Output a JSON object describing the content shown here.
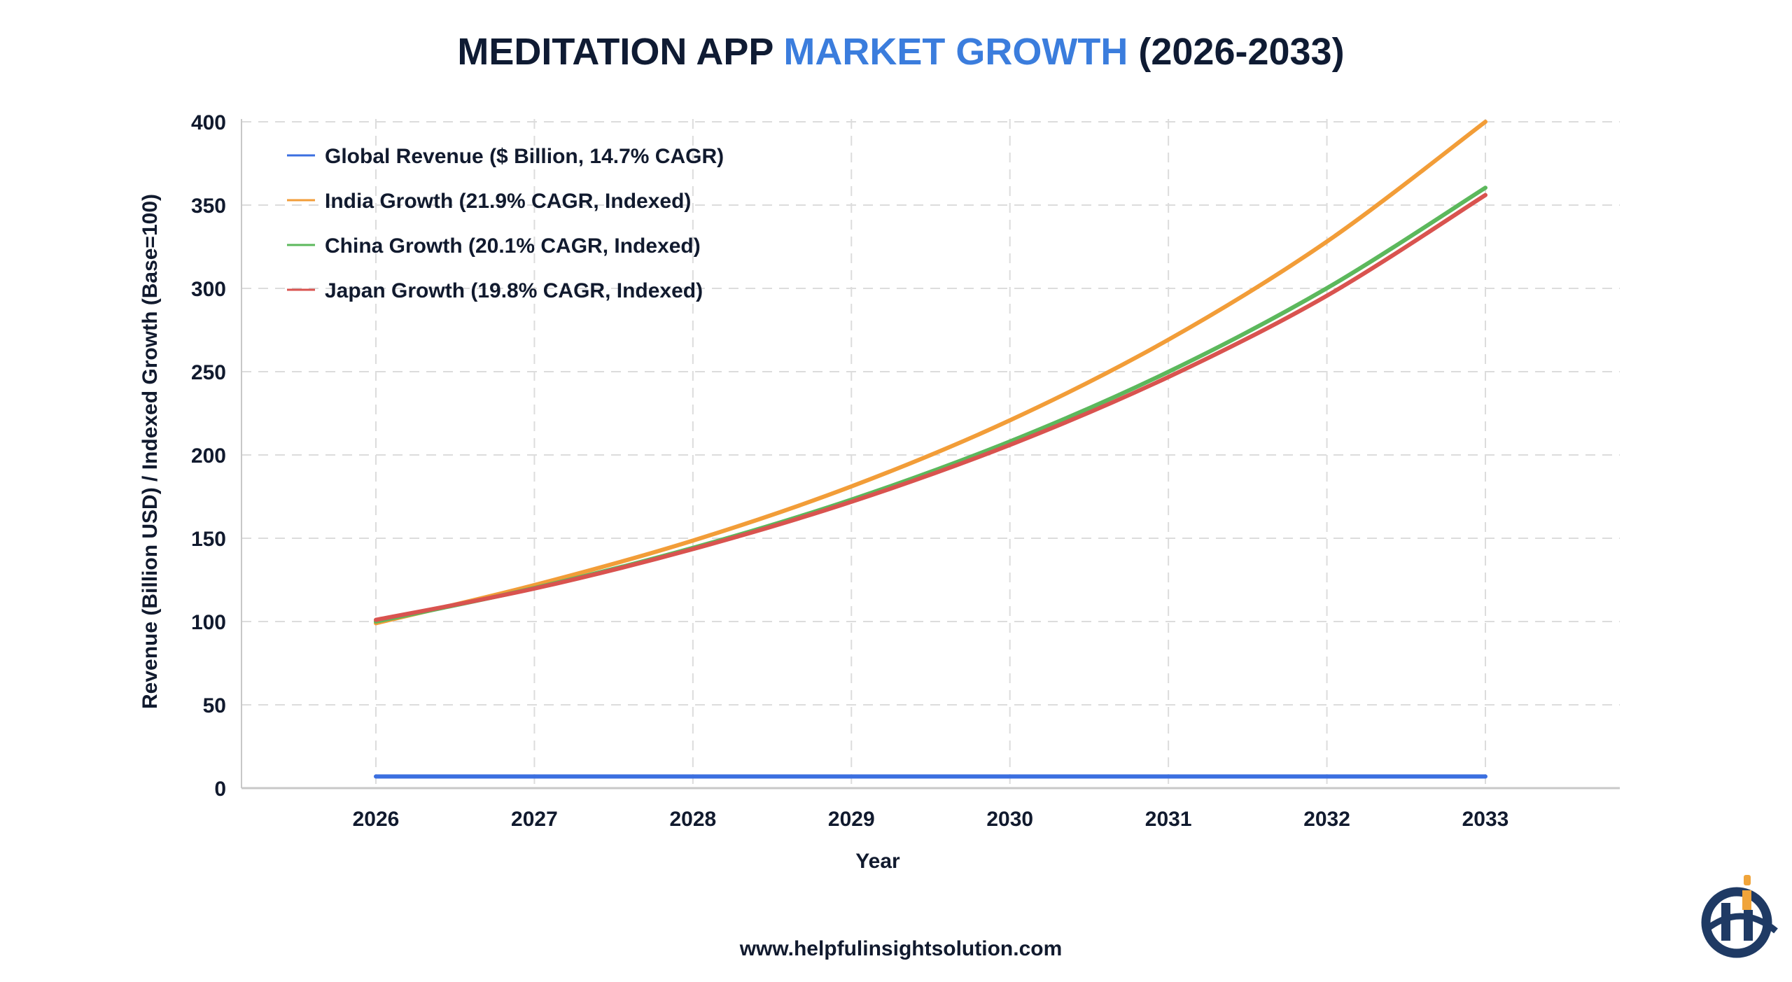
{
  "chart_data": {
    "type": "line",
    "title": {
      "part1": "MEDITATION APP ",
      "part2": "MARKET GROWTH",
      "part3": " (2026-2033)"
    },
    "xlabel": "Year",
    "ylabel": "Revenue (Billion USD) / Indexed Growth (Base=100)",
    "x": [
      2026,
      2027,
      2028,
      2029,
      2030,
      2031,
      2032,
      2033
    ],
    "x_tick_labels": [
      "2026",
      "2027",
      "2028",
      "2029",
      "2030",
      "2031",
      "2032",
      "2033"
    ],
    "y_ticks": [
      0,
      50,
      100,
      150,
      200,
      250,
      300,
      350,
      400
    ],
    "y_tick_labels": [
      "0",
      "50",
      "100",
      "150",
      "200",
      "250",
      "300",
      "350",
      "400"
    ],
    "ylim": [
      0,
      400
    ],
    "grid": true,
    "legend_position": "top-left",
    "series": [
      {
        "name": "Global Revenue ($ Billion, 14.7% CAGR)",
        "color": "#3b6fe0",
        "values": [
          7,
          7,
          7,
          7,
          7,
          7,
          7,
          7
        ]
      },
      {
        "name": "India Growth (21.9% CAGR, Indexed)",
        "color": "#f29d38",
        "values": [
          99,
          121.9,
          148.6,
          181.1,
          220.8,
          269.2,
          328.1,
          400
        ]
      },
      {
        "name": "China Growth (20.1% CAGR, Indexed)",
        "color": "#5cb85c",
        "values": [
          100,
          120.1,
          144.2,
          173.2,
          208.1,
          249.9,
          300.1,
          360.4
        ]
      },
      {
        "name": "Japan Growth (19.8% CAGR, Indexed)",
        "color": "#d9534f",
        "values": [
          101,
          119.8,
          143.5,
          171.9,
          206.0,
          246.8,
          295.6,
          356
        ]
      }
    ]
  },
  "colors": {
    "title_dark": "#0f1b33",
    "title_accent": "#3b7ddd",
    "logo_navy": "#1f3a64",
    "logo_orange": "#f0a43a"
  },
  "footer": {
    "website": "www.helpfulinsightsolution.com"
  },
  "logo": {
    "letters": "Hi"
  }
}
